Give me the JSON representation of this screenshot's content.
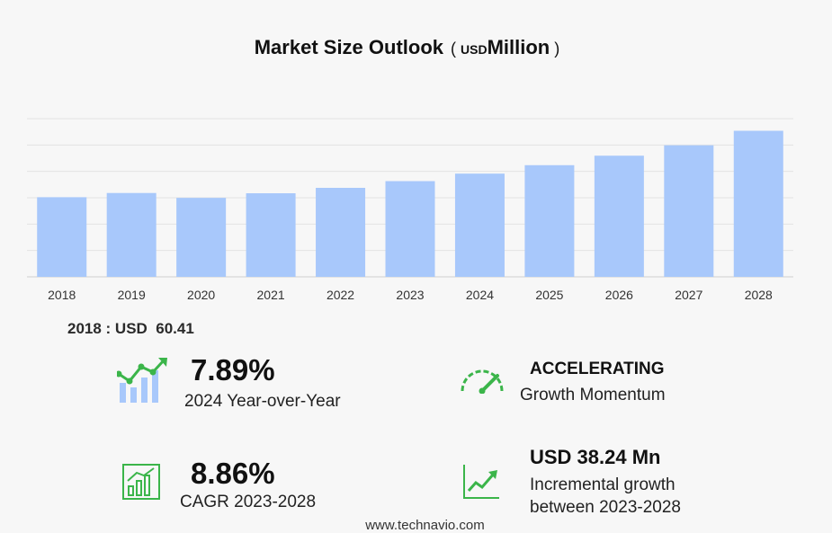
{
  "title": {
    "main": "Market Size Outlook",
    "open": "(",
    "unit_small": "USD",
    "unit_main": "Million",
    "close": ")"
  },
  "chart_data": {
    "type": "bar",
    "categories": [
      "2018",
      "2019",
      "2020",
      "2021",
      "2022",
      "2023",
      "2024",
      "2025",
      "2026",
      "2027",
      "2028"
    ],
    "values": [
      60.41,
      63.6,
      59.9,
      63.4,
      67.5,
      72.6,
      78.3,
      84.7,
      91.9,
      99.8,
      110.8
    ],
    "ylim": [
      0,
      120
    ],
    "grid": true,
    "bar_color": "#a8c8fb"
  },
  "base_stat": "2018 : USD  60.41",
  "kpis": {
    "yoy": {
      "value": "7.89%",
      "label": "2024 Year-over-Year"
    },
    "momentum": {
      "head": "ACCELERATING",
      "label": "Growth Momentum"
    },
    "cagr": {
      "value": "8.86%",
      "label": "CAGR 2023-2028"
    },
    "incremental": {
      "head": "USD 38.24 Mn",
      "label_line1": "Incremental growth",
      "label_line2": "between 2023-2028"
    }
  },
  "icons": {
    "yoy": "growth-chart-icon",
    "momentum": "speedometer-icon",
    "cagr": "bar-chart-icon",
    "incremental": "trend-line-icon"
  },
  "colors": {
    "accent_green": "#3bb54a"
  },
  "source": "www.technavio.com"
}
